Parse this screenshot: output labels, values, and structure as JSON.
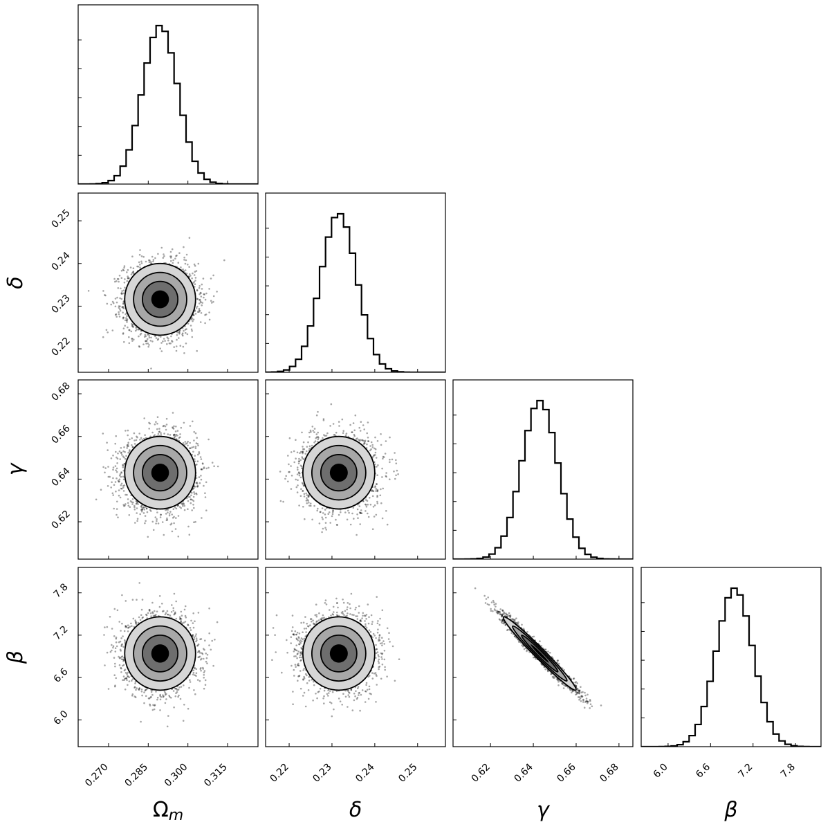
{
  "chart_data": {
    "type": "corner",
    "parameters": [
      {
        "name": "Ωm",
        "label_main": "Ω",
        "label_sub": "m",
        "range": [
          0.2585,
          0.3265
        ],
        "ticks": [
          0.27,
          0.285,
          0.3,
          0.315
        ],
        "tick_labels": [
          "0.270",
          "0.285",
          "0.300",
          "0.315"
        ],
        "mean": 0.2895,
        "sigma": 0.0067
      },
      {
        "name": "δ",
        "label_main": "δ",
        "label_sub": "",
        "range": [
          0.2145,
          0.2565
        ],
        "ticks": [
          0.22,
          0.23,
          0.24,
          0.25
        ],
        "tick_labels": [
          "0.22",
          "0.23",
          "0.24",
          "0.25"
        ],
        "mean": 0.2316,
        "sigma": 0.0042
      },
      {
        "name": "γ",
        "label_main": "γ",
        "label_sub": "",
        "range": [
          0.6025,
          0.6865
        ],
        "ticks": [
          0.62,
          0.64,
          0.66,
          0.68
        ],
        "tick_labels": [
          "0.62",
          "0.64",
          "0.66",
          "0.68"
        ],
        "mean": 0.643,
        "sigma": 0.0085
      },
      {
        "name": "β",
        "label_main": "β",
        "label_sub": "",
        "range": [
          5.62,
          8.16
        ],
        "ticks": [
          6.0,
          6.6,
          7.2,
          7.8
        ],
        "tick_labels": [
          "6.0",
          "6.6",
          "7.2",
          "7.8"
        ],
        "mean": 6.94,
        "sigma": 0.26
      }
    ],
    "correlations": {
      "0-1": 0.0,
      "0-2": 0.0,
      "0-3": 0.0,
      "1-2": 0.0,
      "1-3": 0.0,
      "2-3": -0.98
    },
    "contour_levels_sigma": [
      0.5,
      1.0,
      1.5,
      2.0
    ],
    "histogram_bins": 30,
    "grid": false,
    "legend": "none"
  }
}
